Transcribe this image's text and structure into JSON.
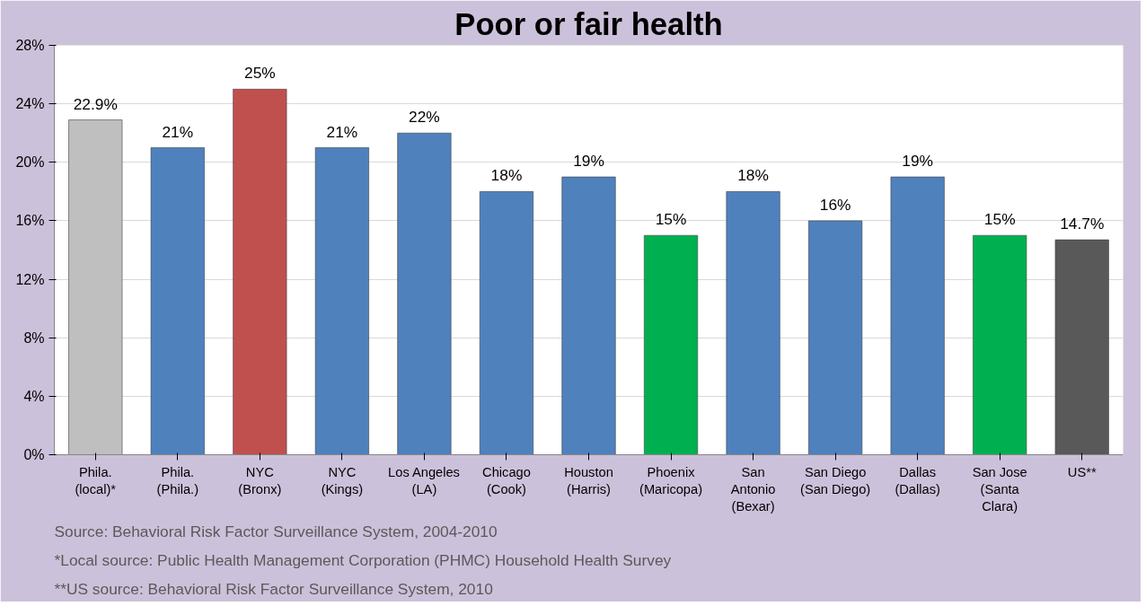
{
  "chart_data": {
    "type": "bar",
    "title": "Poor or fair health",
    "categories": [
      "Phila.\n(local)*",
      "Phila.\n(Phila.)",
      "NYC\n(Bronx)",
      "NYC\n(Kings)",
      "Los Angeles\n(LA)",
      "Chicago\n(Cook)",
      "Houston\n(Harris)",
      "Phoenix\n(Maricopa)",
      "San\nAntonio\n(Bexar)",
      "San Diego\n(San Diego)",
      "Dallas\n(Dallas)",
      "San Jose\n(Santa\nClara)",
      "US**"
    ],
    "values": [
      22.9,
      21,
      25,
      21,
      22,
      18,
      19,
      15,
      18,
      16,
      19,
      15,
      14.7
    ],
    "colors": [
      "#bfbfbf",
      "#4f81bd",
      "#c0504d",
      "#4f81bd",
      "#4f81bd",
      "#4f81bd",
      "#4f81bd",
      "#00b050",
      "#4f81bd",
      "#4f81bd",
      "#4f81bd",
      "#00b050",
      "#595959"
    ],
    "value_labels": [
      "22.9%",
      "21%",
      "25%",
      "21%",
      "22%",
      "18%",
      "19%",
      "15%",
      "18%",
      "16%",
      "19%",
      "15%",
      "14.7%"
    ],
    "ylim": [
      0,
      28
    ],
    "yticks": [
      {
        "value": 0,
        "label": "0%"
      },
      {
        "value": 4,
        "label": "4%"
      },
      {
        "value": 8,
        "label": "8%"
      },
      {
        "value": 12,
        "label": "12%"
      },
      {
        "value": 16,
        "label": "16%"
      },
      {
        "value": 20,
        "label": "20%"
      },
      {
        "value": 24,
        "label": "24%"
      },
      {
        "value": 28,
        "label": "28%"
      }
    ],
    "grid": "y",
    "annotations": [
      "Source: Behavioral Risk Factor Surveillance System, 2004-2010",
      "*Local source: Public Health Management Corporation (PHMC) Household Health Survey",
      "**US source: Behavioral Risk Factor Surveillance System, 2010"
    ]
  }
}
